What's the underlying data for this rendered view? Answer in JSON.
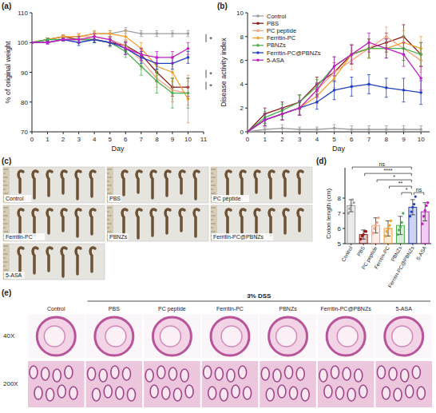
{
  "chart_data": [
    {
      "type": "line",
      "panel": "(a)",
      "xlabel": "Day",
      "ylabel": "% of original weight",
      "x": [
        0,
        1,
        2,
        3,
        4,
        5,
        6,
        7,
        8,
        9,
        10
      ],
      "xlim": [
        0,
        11
      ],
      "xticks": [
        0,
        1,
        2,
        3,
        4,
        5,
        6,
        7,
        8,
        9,
        10,
        11
      ],
      "ylim": [
        70,
        110
      ],
      "yticks": [
        70,
        80,
        90,
        100,
        110
      ],
      "marker": "circle",
      "annotations": [
        "*",
        "*",
        "*"
      ],
      "series": [
        {
          "name": "Control",
          "color": "#9e9e9e",
          "values": [
            100,
            101,
            102,
            102,
            103,
            103,
            104,
            103,
            103,
            103,
            103
          ],
          "errors": [
            0,
            0.5,
            0.5,
            0.8,
            0.8,
            1,
            1,
            1,
            1,
            1,
            1
          ]
        },
        {
          "name": "PBS",
          "color": "#8b1a1a",
          "values": [
            100,
            101,
            102,
            101,
            101,
            100,
            99,
            96,
            90,
            85,
            85
          ],
          "errors": [
            0,
            0.5,
            0.5,
            1,
            1,
            1,
            1.5,
            2,
            3,
            3,
            3
          ]
        },
        {
          "name": "PC peptide",
          "color": "#f4a582",
          "values": [
            100,
            101,
            102,
            102,
            102,
            101,
            99,
            94,
            88,
            84,
            83
          ],
          "errors": [
            0,
            0.5,
            0.5,
            1,
            1,
            1,
            2,
            3,
            3,
            4,
            4
          ]
        },
        {
          "name": "Ferritin-PC",
          "color": "#f0a030",
          "values": [
            100,
            101,
            102,
            102,
            103,
            103,
            102,
            98,
            92,
            90,
            81
          ],
          "errors": [
            0,
            0.5,
            0.5,
            1,
            1,
            1,
            2,
            2,
            3,
            3,
            8
          ]
        },
        {
          "name": "PBNZs",
          "color": "#4caf50",
          "values": [
            100,
            101,
            101,
            101,
            101,
            100,
            97,
            92,
            87,
            83,
            83
          ],
          "errors": [
            0,
            0.5,
            0.5,
            1,
            1,
            1.5,
            2,
            3,
            4,
            5,
            5
          ]
        },
        {
          "name": "Ferritin-PC@PBNZs",
          "color": "#2040c0",
          "values": [
            100,
            100,
            101,
            100,
            101,
            100,
            98,
            95,
            93,
            93,
            95
          ],
          "errors": [
            0,
            0.5,
            0.5,
            1,
            1,
            1,
            2,
            2,
            2,
            2,
            2
          ]
        },
        {
          "name": "5-ASA",
          "color": "#c020c0",
          "values": [
            100,
            100,
            101,
            101,
            102,
            101,
            98,
            96,
            95,
            95,
            98
          ],
          "errors": [
            0,
            0.5,
            0.5,
            1,
            1,
            1,
            2,
            2,
            2,
            2,
            2
          ]
        }
      ]
    },
    {
      "type": "line",
      "panel": "(b)",
      "xlabel": "Day",
      "ylabel": "Disease activity index",
      "x": [
        0,
        1,
        2,
        3,
        4,
        5,
        6,
        7,
        8,
        9,
        10
      ],
      "xlim": [
        0,
        10.5
      ],
      "xticks": [
        0,
        1,
        2,
        3,
        4,
        5,
        6,
        7,
        8,
        9,
        10
      ],
      "ylim": [
        0,
        10
      ],
      "yticks": [
        0,
        2,
        4,
        6,
        8,
        10
      ],
      "marker": "circle",
      "legend": "upper left",
      "series": [
        {
          "name": "Control",
          "color": "#9e9e9e",
          "values": [
            0,
            0.2,
            0.3,
            0.2,
            0.2,
            0.3,
            0.2,
            0.2,
            0.2,
            0.2,
            0.2
          ],
          "errors": [
            0,
            0.2,
            0.3,
            0.2,
            0.2,
            0.3,
            0.3,
            0.3,
            0.3,
            0.3,
            0.3
          ]
        },
        {
          "name": "PBS",
          "color": "#8b1a1a",
          "values": [
            0,
            1.5,
            2,
            2.5,
            4,
            5,
            6.5,
            7,
            7.5,
            8,
            6.5
          ],
          "errors": [
            0,
            0.5,
            0.5,
            0.6,
            0.6,
            0.8,
            0.8,
            0.8,
            0.8,
            1,
            1
          ]
        },
        {
          "name": "PC peptide",
          "color": "#f4a582",
          "values": [
            0,
            1,
            1.5,
            2,
            3.5,
            5,
            6,
            7,
            8,
            7,
            6
          ],
          "errors": [
            0,
            0.5,
            0.5,
            0.6,
            0.6,
            0.8,
            0.8,
            0.8,
            0.8,
            1,
            1
          ]
        },
        {
          "name": "Ferritin-PC",
          "color": "#f0a030",
          "values": [
            0,
            1,
            1.5,
            2,
            3,
            4.5,
            6.5,
            7,
            7,
            7.5,
            7
          ],
          "errors": [
            0,
            0.5,
            0.5,
            0.6,
            0.6,
            0.8,
            0.8,
            0.8,
            0.8,
            1,
            1
          ]
        },
        {
          "name": "PBNZs",
          "color": "#4caf50",
          "values": [
            0,
            1.2,
            1.8,
            2.5,
            3.8,
            5.5,
            6.5,
            7,
            7,
            7,
            6.5
          ],
          "errors": [
            0,
            0.5,
            0.5,
            0.6,
            0.6,
            0.8,
            0.8,
            0.8,
            0.8,
            1,
            1
          ]
        },
        {
          "name": "Ferritin-PC@PBNZs",
          "color": "#2040c0",
          "values": [
            0,
            1,
            1.5,
            2,
            2.5,
            3.5,
            3.8,
            4,
            3.7,
            3.5,
            3.3
          ],
          "errors": [
            0,
            0.5,
            0.5,
            0.6,
            0.6,
            0.8,
            0.8,
            0.8,
            0.8,
            1,
            1
          ]
        },
        {
          "name": "5-ASA",
          "color": "#c020c0",
          "values": [
            0,
            1,
            1.5,
            2,
            3.5,
            5.5,
            6.5,
            7.5,
            7,
            6.5,
            4.5
          ],
          "errors": [
            0,
            0.5,
            0.5,
            0.6,
            0.6,
            0.8,
            0.8,
            0.8,
            0.8,
            1,
            1
          ]
        }
      ]
    },
    {
      "type": "bar",
      "panel": "(d)",
      "ylabel": "Colon length (cm)",
      "categories": [
        "Control",
        "PBS",
        "PC peptide",
        "Ferritin-PC",
        "PBNZs",
        "Ferritin-PC@PBNZs",
        "5-ASA"
      ],
      "values": [
        7.5,
        5.6,
        6.2,
        6.0,
        6.2,
        7.4,
        7.1
      ],
      "errors": [
        0.4,
        0.3,
        0.5,
        0.5,
        0.6,
        0.5,
        0.6
      ],
      "points": [
        [
          7.0,
          7.3,
          7.6,
          7.9,
          7.7
        ],
        [
          5.3,
          5.5,
          5.6,
          5.8,
          5.8
        ],
        [
          5.7,
          6.0,
          6.2,
          6.4,
          6.7
        ],
        [
          5.5,
          5.8,
          6.0,
          6.2,
          6.5
        ],
        [
          5.6,
          5.9,
          6.1,
          6.4,
          7.0
        ],
        [
          6.8,
          7.1,
          7.4,
          7.6,
          8.1
        ],
        [
          6.3,
          6.8,
          7.2,
          7.5,
          7.7
        ]
      ],
      "colors": [
        "#9e9e9e",
        "#8b1a1a",
        "#f4a582",
        "#f0a030",
        "#4caf50",
        "#2040c0",
        "#c020c0"
      ],
      "ylim": [
        5,
        10
      ],
      "yticks": [
        5,
        6,
        7,
        8
      ],
      "comparisons": [
        {
          "from": 4,
          "to": 5,
          "label": "*"
        },
        {
          "from": 5,
          "to": 6,
          "label": "ns"
        },
        {
          "from": 3,
          "to": 5,
          "label": "**"
        },
        {
          "from": 2,
          "to": 5,
          "label": "*"
        },
        {
          "from": 1,
          "to": 5,
          "label": "****"
        },
        {
          "from": 0,
          "to": 5,
          "label": "ns"
        }
      ]
    }
  ],
  "photo_panel": {
    "panel": "(c)",
    "labels": [
      "Control",
      "PBS",
      "PC peptide",
      "Ferritin-PC",
      "PBNZs",
      "Ferritin-PC@PBNZs",
      "5-ASA"
    ]
  },
  "histology_panel": {
    "panel": "(e)",
    "header": "3% DSS",
    "columns": [
      "Control",
      "PBS",
      "PC peptide",
      "Ferritin-PC",
      "PBNZs",
      "Ferritin-PC@PBNZs",
      "5-ASA"
    ],
    "rows": [
      "40X",
      "200X"
    ]
  }
}
